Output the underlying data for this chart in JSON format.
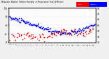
{
  "title_left": "Milwaukee Weather",
  "title_mid": "Outdoor Humidity",
  "title_right": "vs Temperature",
  "background_color": "#f0f0f0",
  "plot_bg_color": "#ffffff",
  "blue_color": "#0000dd",
  "red_color": "#dd0000",
  "legend_red_color": "#ee0000",
  "legend_blue_color": "#0000ff",
  "ylim_left": [
    20,
    100
  ],
  "ylim_right": [
    20,
    80
  ],
  "grid_color": "#cccccc",
  "marker_size": 1.5,
  "fig_width": 1.6,
  "fig_height": 0.87,
  "n_points": 170,
  "blue_seed": 10,
  "red_seed": 20
}
